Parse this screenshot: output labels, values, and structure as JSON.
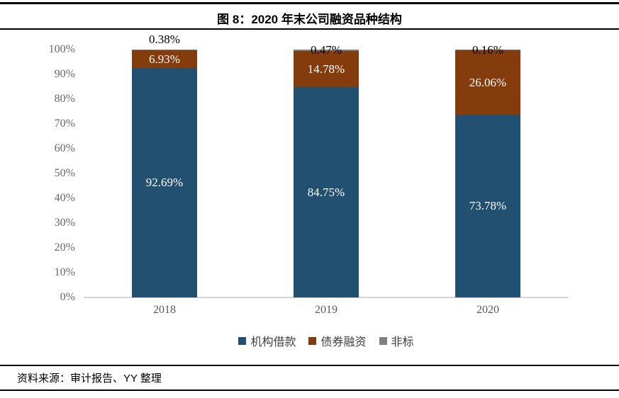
{
  "source_note": "资料来源：审计报告、YY 整理",
  "chart_data": {
    "type": "bar",
    "stacked": true,
    "title": "图 8：2020 年末公司融资品种结构",
    "categories": [
      "2018",
      "2019",
      "2020"
    ],
    "series": [
      {
        "name": "机构借款",
        "slug": "institutional-loans",
        "color": "#215070",
        "label_color": "#ffffff",
        "values": [
          92.69,
          84.75,
          73.78
        ],
        "labels": [
          "92.69%",
          "84.75%",
          "73.78%"
        ]
      },
      {
        "name": "债券融资",
        "slug": "bond-financing",
        "color": "#843C0C",
        "label_color": "#ffffff",
        "values": [
          6.93,
          14.78,
          26.06
        ],
        "labels": [
          "6.93%",
          "14.78%",
          "26.06%"
        ]
      },
      {
        "name": "非标",
        "slug": "non-standard",
        "color": "#7F7F7F",
        "label_color": "#000000",
        "values": [
          0.38,
          0.47,
          0.16
        ],
        "labels": [
          "0.38%",
          "0.47%",
          "0.16%"
        ],
        "label_positions": [
          "above",
          "center",
          "center"
        ]
      }
    ],
    "ylim": [
      0,
      100
    ],
    "y_tick_labels": [
      "100%",
      "90%",
      "80%",
      "70%",
      "60%",
      "50%",
      "40%",
      "30%",
      "20%",
      "10%",
      "0%"
    ],
    "xlabel": "",
    "ylabel": "",
    "grid": false,
    "legend_position": "bottom",
    "axis_line_color": "#D4D4D4",
    "tick_label_color": "#666666"
  }
}
